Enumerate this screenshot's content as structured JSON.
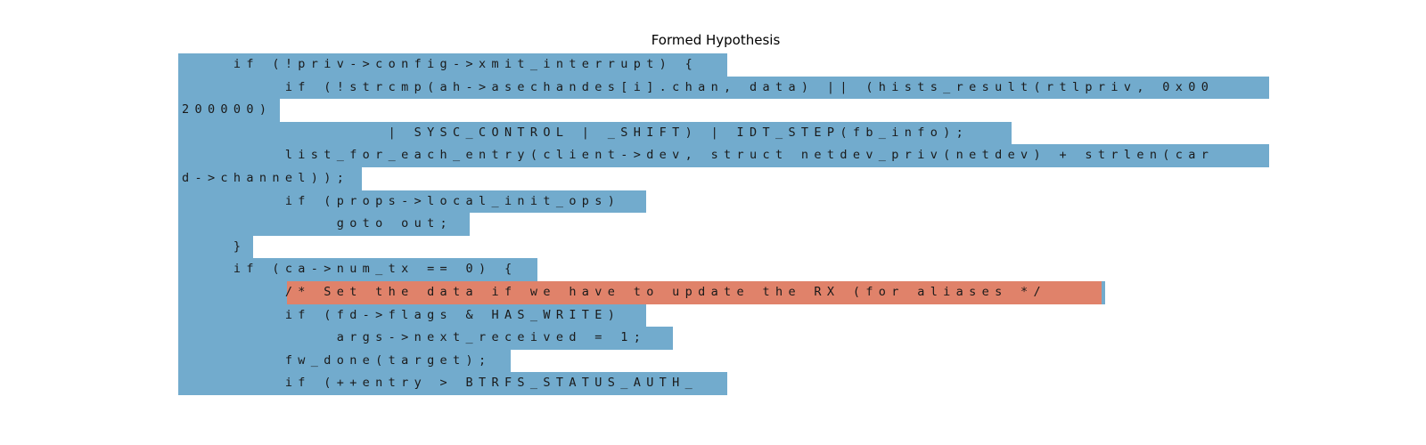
{
  "title": "Formed Hypothesis",
  "colors": {
    "base_highlight": "#72abcd",
    "hypothesis_highlight": "#e0826a",
    "text": "#1a1a1a",
    "background": "#ffffff"
  },
  "lines": [
    {
      "text": "    if (!priv->config->xmit_interrupt) {",
      "highlight": "base"
    },
    {
      "text": "        if (!strcmp(ah->asechandes[i].chan, data) || (hists_result(rtlpriv, 0x00",
      "highlight": "base"
    },
    {
      "text": "200000)",
      "highlight": "base"
    },
    {
      "text": "                | SYSC_CONTROL | _SHIFT) | IDT_STEP(fb_info);",
      "highlight": "base"
    },
    {
      "text": "        list_for_each_entry(client->dev, struct netdev_priv(netdev) + strlen(car",
      "highlight": "base"
    },
    {
      "text": "d->channel));",
      "highlight": "base"
    },
    {
      "text": "        if (props->local_init_ops)",
      "highlight": "base"
    },
    {
      "text": "            goto out;",
      "highlight": "base"
    },
    {
      "text": "    }",
      "highlight": "base"
    },
    {
      "text": "    if (ca->num_tx == 0) {",
      "highlight": "base"
    },
    {
      "text": "        /* Set the data if we have to update the RX (for aliases */",
      "highlight": "hypothesis",
      "hypothesis_start_col": 8,
      "hypothesis_end_col": 68
    },
    {
      "text": "        if (fd->flags & HAS_WRITE)",
      "highlight": "base"
    },
    {
      "text": "            args->next_received = 1;",
      "highlight": "base"
    },
    {
      "text": "        fw_done(target);",
      "highlight": "base"
    },
    {
      "text": "        if (++entry > BTRFS_STATUS_AUTH_",
      "highlight": "base"
    }
  ]
}
